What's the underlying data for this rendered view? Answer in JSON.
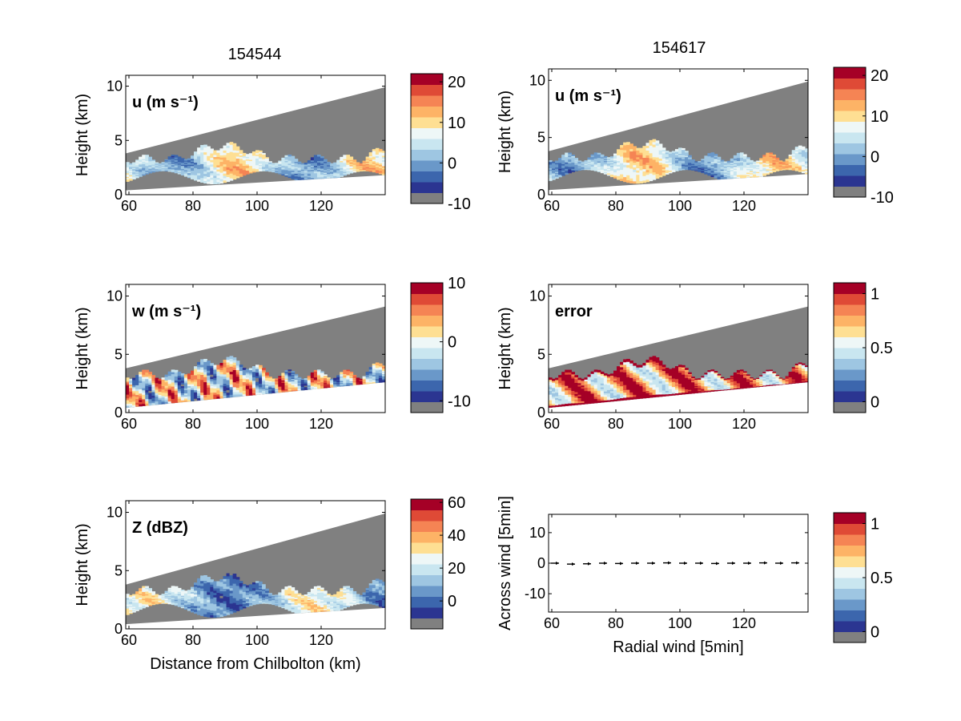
{
  "figure": {
    "left_column_title": "154544",
    "right_column_title": "154617"
  },
  "colors": {
    "scale": [
      "#2b3591",
      "#3c66ad",
      "#6a98c9",
      "#9ec6e2",
      "#c9e6f0",
      "#eef7f7",
      "#fedf93",
      "#fdb366",
      "#f58454",
      "#df4a36",
      "#a50026"
    ],
    "beam_gray": "#808080",
    "below_scale": "#808080"
  },
  "chart_data": [
    {
      "type": "heatmap",
      "panel_label": "u (m s⁻¹)",
      "ylabel": "Height (km)",
      "xlabel": "",
      "xlim": [
        59,
        140
      ],
      "ylim": [
        0,
        11
      ],
      "xticks": [
        60,
        80,
        100,
        120
      ],
      "yticks": [
        0,
        5,
        10
      ],
      "colorbar": {
        "range": [
          -10,
          22
        ],
        "ticks": [
          20,
          10,
          0,
          -10
        ]
      },
      "data_value_range": [
        -5,
        12
      ]
    },
    {
      "type": "heatmap",
      "panel_label": "u (m s⁻¹)",
      "ylabel": "Height (km)",
      "xlabel": "",
      "xlim": [
        59,
        140
      ],
      "ylim": [
        0,
        11
      ],
      "xticks": [
        60,
        80,
        100,
        120
      ],
      "yticks": [
        0,
        5,
        10
      ],
      "colorbar": {
        "range": [
          -10,
          22
        ],
        "ticks": [
          20,
          10,
          0,
          -10
        ]
      },
      "data_value_range": [
        -5,
        12
      ]
    },
    {
      "type": "heatmap",
      "panel_label": "w (m s⁻¹)",
      "ylabel": "Height (km)",
      "xlabel": "",
      "xlim": [
        59,
        140
      ],
      "ylim": [
        0,
        11
      ],
      "xticks": [
        60,
        80,
        100,
        120
      ],
      "yticks": [
        0,
        5,
        10
      ],
      "colorbar": {
        "range": [
          -12,
          10
        ],
        "ticks": [
          10,
          0,
          -10
        ]
      },
      "data_value_range": [
        -10,
        10
      ]
    },
    {
      "type": "heatmap",
      "panel_label": "error",
      "ylabel": "Height (km)",
      "xlabel": "",
      "xlim": [
        59,
        140
      ],
      "ylim": [
        0,
        11
      ],
      "xticks": [
        60,
        80,
        100,
        120
      ],
      "yticks": [
        0,
        5,
        10
      ],
      "colorbar": {
        "range": [
          -0.1,
          1.1
        ],
        "ticks": [
          1,
          0.5,
          0
        ]
      },
      "data_value_range": [
        0.3,
        1.1
      ]
    },
    {
      "type": "heatmap",
      "panel_label": "Z (dBZ)",
      "ylabel": "Height (km)",
      "xlabel": "Distance from Chilbolton (km)",
      "xlim": [
        59,
        140
      ],
      "ylim": [
        0,
        11
      ],
      "xticks": [
        60,
        80,
        100,
        120
      ],
      "yticks": [
        0,
        5,
        10
      ],
      "colorbar": {
        "range": [
          -17,
          62
        ],
        "ticks": [
          60,
          40,
          20,
          0
        ]
      },
      "data_value_range": [
        -5,
        38
      ]
    },
    {
      "type": "scatter",
      "panel_label": "",
      "ylabel": "Across wind [5min]",
      "xlabel": "Radial wind [5min]",
      "xlim": [
        59,
        140
      ],
      "ylim": [
        -16,
        16
      ],
      "xticks": [
        60,
        80,
        100,
        120
      ],
      "yticks": [
        10,
        0,
        -10
      ],
      "colorbar": {
        "range": [
          -0.1,
          1.1
        ],
        "ticks": [
          1,
          0.5,
          0
        ]
      },
      "x": [
        61,
        66,
        71,
        76,
        81,
        86,
        91,
        96,
        101,
        106,
        111,
        116,
        121,
        126,
        131,
        136
      ],
      "y": [
        0,
        -0.3,
        -0.2,
        0,
        -0.1,
        0,
        0,
        0.1,
        0,
        0,
        -0.1,
        0,
        0,
        0.1,
        0,
        0.1
      ]
    }
  ]
}
